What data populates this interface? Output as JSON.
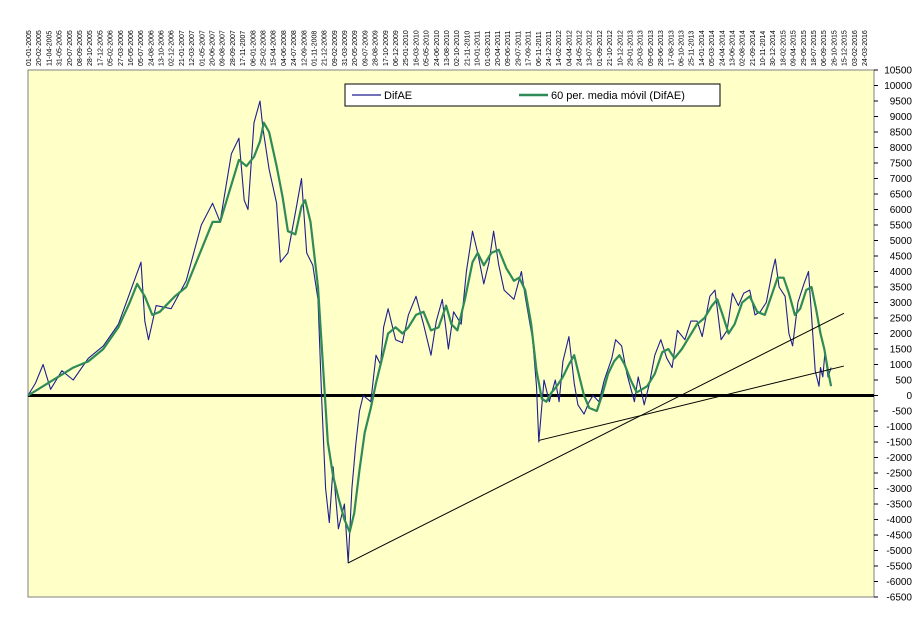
{
  "chart_data": {
    "type": "line",
    "title": "",
    "xlabel": "",
    "ylabel": "",
    "ylim": [
      -6500,
      10500
    ],
    "y_tick_step": 500,
    "grid": false,
    "legend_position": "top-center",
    "colors": {
      "plot_background": "#FFFFC8",
      "difae": "#1F1F8F",
      "moving_average": "#2E8B57",
      "zero_line": "#000000",
      "trendlines": "#000000"
    },
    "x_tick_labels": [
      "01-01-2005",
      "20-02-2005",
      "11-04-2005",
      "31-05-2005",
      "20-07-2005",
      "08-09-2005",
      "28-10-2005",
      "17-12-2005",
      "05-02-2006",
      "27-03-2006",
      "16-05-2006",
      "05-07-2006",
      "24-08-2006",
      "13-10-2006",
      "02-12-2006",
      "21-01-2007",
      "12-03-2007",
      "01-05-2007",
      "20-06-2007",
      "09-08-2007",
      "28-09-2007",
      "17-11-2007",
      "06-01-2008",
      "25-02-2008",
      "15-04-2008",
      "04-06-2008",
      "24-07-2008",
      "12-09-2008",
      "01-11-2008",
      "21-12-2008",
      "09-02-2009",
      "31-03-2009",
      "20-05-2009",
      "09-07-2009",
      "28-08-2009",
      "17-10-2009",
      "06-12-2009",
      "25-01-2010",
      "16-03-2010",
      "05-05-2010",
      "24-06-2010",
      "13-08-2010",
      "02-10-2010",
      "21-11-2010",
      "10-01-2011",
      "01-03-2011",
      "20-04-2011",
      "09-06-2011",
      "29-07-2011",
      "17-09-2011",
      "06-11-2011",
      "24-12-2011",
      "14-02-2012",
      "04-04-2012",
      "24-05-2012",
      "13-07-2012",
      "01-09-2012",
      "21-10-2012",
      "10-12-2012",
      "29-01-2013",
      "20-03-2013",
      "09-05-2013",
      "28-06-2013",
      "17-08-2013",
      "06-10-2013",
      "25-11-2013",
      "14-01-2014",
      "05-03-2014",
      "24-04-2014",
      "13-06-2014",
      "02-08-2014",
      "21-09-2014",
      "10-11-2014",
      "30-12-2014",
      "18-02-2015",
      "09-04-2015",
      "29-05-2015",
      "18-07-2015",
      "06-09-2015",
      "26-10-2015",
      "15-12-2015",
      "03-02-2016",
      "24-03-2016"
    ],
    "series": [
      {
        "name": "DifAE",
        "points": [
          [
            2005.0,
            0
          ],
          [
            2005.1,
            400
          ],
          [
            2005.2,
            1000
          ],
          [
            2005.3,
            200
          ],
          [
            2005.45,
            800
          ],
          [
            2005.6,
            500
          ],
          [
            2005.8,
            1200
          ],
          [
            2006.0,
            1600
          ],
          [
            2006.2,
            2300
          ],
          [
            2006.35,
            3300
          ],
          [
            2006.5,
            4300
          ],
          [
            2006.55,
            2400
          ],
          [
            2006.6,
            1800
          ],
          [
            2006.7,
            2900
          ],
          [
            2006.9,
            2800
          ],
          [
            2007.1,
            3700
          ],
          [
            2007.3,
            5500
          ],
          [
            2007.45,
            6200
          ],
          [
            2007.55,
            5600
          ],
          [
            2007.7,
            7800
          ],
          [
            2007.8,
            8300
          ],
          [
            2007.87,
            6300
          ],
          [
            2007.92,
            6000
          ],
          [
            2008.0,
            8800
          ],
          [
            2008.08,
            9500
          ],
          [
            2008.12,
            8600
          ],
          [
            2008.2,
            7300
          ],
          [
            2008.3,
            6200
          ],
          [
            2008.35,
            4300
          ],
          [
            2008.45,
            4600
          ],
          [
            2008.55,
            5900
          ],
          [
            2008.63,
            7000
          ],
          [
            2008.7,
            4600
          ],
          [
            2008.78,
            4200
          ],
          [
            2008.85,
            3100
          ],
          [
            2008.9,
            -200
          ],
          [
            2008.95,
            -3000
          ],
          [
            2009.0,
            -4100
          ],
          [
            2009.05,
            -2300
          ],
          [
            2009.12,
            -4300
          ],
          [
            2009.2,
            -3500
          ],
          [
            2009.25,
            -5400
          ],
          [
            2009.3,
            -3000
          ],
          [
            2009.35,
            -1600
          ],
          [
            2009.4,
            -500
          ],
          [
            2009.45,
            0
          ],
          [
            2009.55,
            -200
          ],
          [
            2009.62,
            1300
          ],
          [
            2009.68,
            1000
          ],
          [
            2009.72,
            2200
          ],
          [
            2009.78,
            2800
          ],
          [
            2009.88,
            1800
          ],
          [
            2009.97,
            1700
          ],
          [
            2010.05,
            2600
          ],
          [
            2010.15,
            3200
          ],
          [
            2010.25,
            2300
          ],
          [
            2010.35,
            1300
          ],
          [
            2010.42,
            2400
          ],
          [
            2010.5,
            3100
          ],
          [
            2010.58,
            1500
          ],
          [
            2010.65,
            2700
          ],
          [
            2010.75,
            2300
          ],
          [
            2010.82,
            4000
          ],
          [
            2010.9,
            5300
          ],
          [
            2010.97,
            4600
          ],
          [
            2011.05,
            3600
          ],
          [
            2011.12,
            4300
          ],
          [
            2011.18,
            5300
          ],
          [
            2011.25,
            4200
          ],
          [
            2011.32,
            3400
          ],
          [
            2011.45,
            3100
          ],
          [
            2011.55,
            4000
          ],
          [
            2011.6,
            3200
          ],
          [
            2011.7,
            1800
          ],
          [
            2011.75,
            300
          ],
          [
            2011.78,
            -1500
          ],
          [
            2011.85,
            500
          ],
          [
            2011.92,
            -200
          ],
          [
            2012.0,
            500
          ],
          [
            2012.05,
            -200
          ],
          [
            2012.1,
            1100
          ],
          [
            2012.18,
            1900
          ],
          [
            2012.25,
            400
          ],
          [
            2012.3,
            -300
          ],
          [
            2012.38,
            -600
          ],
          [
            2012.45,
            -200
          ],
          [
            2012.5,
            0
          ],
          [
            2012.58,
            -200
          ],
          [
            2012.65,
            500
          ],
          [
            2012.75,
            1200
          ],
          [
            2012.8,
            1800
          ],
          [
            2012.88,
            1600
          ],
          [
            2012.95,
            700
          ],
          [
            2013.05,
            -200
          ],
          [
            2013.1,
            600
          ],
          [
            2013.18,
            -300
          ],
          [
            2013.25,
            400
          ],
          [
            2013.32,
            1300
          ],
          [
            2013.4,
            1800
          ],
          [
            2013.48,
            1200
          ],
          [
            2013.55,
            900
          ],
          [
            2013.62,
            2100
          ],
          [
            2013.72,
            1800
          ],
          [
            2013.8,
            2400
          ],
          [
            2013.88,
            2400
          ],
          [
            2013.95,
            1900
          ],
          [
            2014.05,
            3200
          ],
          [
            2014.12,
            3400
          ],
          [
            2014.15,
            2800
          ],
          [
            2014.2,
            1800
          ],
          [
            2014.28,
            2100
          ],
          [
            2014.35,
            3300
          ],
          [
            2014.43,
            2900
          ],
          [
            2014.5,
            3300
          ],
          [
            2014.58,
            3400
          ],
          [
            2014.65,
            2600
          ],
          [
            2014.72,
            2700
          ],
          [
            2014.8,
            3000
          ],
          [
            2014.88,
            4000
          ],
          [
            2014.92,
            4400
          ],
          [
            2014.97,
            3500
          ],
          [
            2015.05,
            3200
          ],
          [
            2015.1,
            2000
          ],
          [
            2015.15,
            1600
          ],
          [
            2015.22,
            3000
          ],
          [
            2015.3,
            3600
          ],
          [
            2015.36,
            4000
          ],
          [
            2015.4,
            2600
          ],
          [
            2015.45,
            800
          ],
          [
            2015.5,
            300
          ],
          [
            2015.52,
            900
          ],
          [
            2015.55,
            600
          ],
          [
            2015.58,
            1400
          ],
          [
            2015.62,
            600
          ],
          [
            2015.66,
            900
          ]
        ]
      },
      {
        "name": "60 per. media móvil (DifAE)",
        "points": [
          [
            2005.0,
            0
          ],
          [
            2005.2,
            300
          ],
          [
            2005.4,
            600
          ],
          [
            2005.6,
            900
          ],
          [
            2005.8,
            1100
          ],
          [
            2006.0,
            1500
          ],
          [
            2006.2,
            2200
          ],
          [
            2006.35,
            3000
          ],
          [
            2006.45,
            3600
          ],
          [
            2006.55,
            3200
          ],
          [
            2006.65,
            2600
          ],
          [
            2006.75,
            2700
          ],
          [
            2006.95,
            3200
          ],
          [
            2007.1,
            3500
          ],
          [
            2007.3,
            4700
          ],
          [
            2007.45,
            5600
          ],
          [
            2007.55,
            5600
          ],
          [
            2007.7,
            6800
          ],
          [
            2007.8,
            7600
          ],
          [
            2007.9,
            7400
          ],
          [
            2008.0,
            7700
          ],
          [
            2008.08,
            8200
          ],
          [
            2008.13,
            8800
          ],
          [
            2008.2,
            8500
          ],
          [
            2008.3,
            7400
          ],
          [
            2008.38,
            6400
          ],
          [
            2008.45,
            5300
          ],
          [
            2008.55,
            5200
          ],
          [
            2008.63,
            6100
          ],
          [
            2008.68,
            6300
          ],
          [
            2008.75,
            5600
          ],
          [
            2008.85,
            3500
          ],
          [
            2008.92,
            800
          ],
          [
            2008.98,
            -1500
          ],
          [
            2009.05,
            -2600
          ],
          [
            2009.12,
            -3300
          ],
          [
            2009.2,
            -4000
          ],
          [
            2009.27,
            -4400
          ],
          [
            2009.33,
            -3800
          ],
          [
            2009.4,
            -2400
          ],
          [
            2009.47,
            -1200
          ],
          [
            2009.55,
            -400
          ],
          [
            2009.62,
            400
          ],
          [
            2009.7,
            1200
          ],
          [
            2009.78,
            2000
          ],
          [
            2009.88,
            2200
          ],
          [
            2009.97,
            2000
          ],
          [
            2010.05,
            2200
          ],
          [
            2010.15,
            2600
          ],
          [
            2010.25,
            2700
          ],
          [
            2010.35,
            2100
          ],
          [
            2010.45,
            2200
          ],
          [
            2010.55,
            2900
          ],
          [
            2010.62,
            2300
          ],
          [
            2010.7,
            2100
          ],
          [
            2010.8,
            3100
          ],
          [
            2010.9,
            4300
          ],
          [
            2010.97,
            4600
          ],
          [
            2011.05,
            4200
          ],
          [
            2011.15,
            4600
          ],
          [
            2011.25,
            4700
          ],
          [
            2011.35,
            4100
          ],
          [
            2011.45,
            3700
          ],
          [
            2011.52,
            3800
          ],
          [
            2011.6,
            3400
          ],
          [
            2011.68,
            2300
          ],
          [
            2011.75,
            800
          ],
          [
            2011.82,
            -100
          ],
          [
            2011.88,
            -200
          ],
          [
            2011.95,
            100
          ],
          [
            2012.02,
            300
          ],
          [
            2012.1,
            600
          ],
          [
            2012.18,
            1000
          ],
          [
            2012.25,
            1300
          ],
          [
            2012.3,
            800
          ],
          [
            2012.38,
            0
          ],
          [
            2012.45,
            -400
          ],
          [
            2012.55,
            -500
          ],
          [
            2012.62,
            0
          ],
          [
            2012.7,
            700
          ],
          [
            2012.78,
            1100
          ],
          [
            2012.85,
            1300
          ],
          [
            2012.92,
            1000
          ],
          [
            2013.0,
            500
          ],
          [
            2013.08,
            100
          ],
          [
            2013.15,
            200
          ],
          [
            2013.22,
            300
          ],
          [
            2013.32,
            700
          ],
          [
            2013.42,
            1400
          ],
          [
            2013.5,
            1500
          ],
          [
            2013.58,
            1200
          ],
          [
            2013.68,
            1500
          ],
          [
            2013.78,
            1900
          ],
          [
            2013.88,
            2300
          ],
          [
            2013.98,
            2500
          ],
          [
            2014.08,
            2900
          ],
          [
            2014.15,
            3100
          ],
          [
            2014.22,
            2600
          ],
          [
            2014.3,
            2000
          ],
          [
            2014.38,
            2300
          ],
          [
            2014.48,
            3000
          ],
          [
            2014.58,
            3200
          ],
          [
            2014.68,
            2700
          ],
          [
            2014.78,
            2600
          ],
          [
            2014.88,
            3300
          ],
          [
            2014.95,
            3800
          ],
          [
            2015.03,
            3800
          ],
          [
            2015.1,
            3300
          ],
          [
            2015.18,
            2600
          ],
          [
            2015.25,
            2800
          ],
          [
            2015.33,
            3400
          ],
          [
            2015.4,
            3500
          ],
          [
            2015.46,
            2800
          ],
          [
            2015.52,
            2000
          ],
          [
            2015.57,
            1500
          ],
          [
            2015.62,
            800
          ],
          [
            2015.66,
            300
          ]
        ]
      }
    ],
    "trendlines": [
      [
        [
          2009.25,
          -5400
        ],
        [
          2015.83,
          2650
        ]
      ],
      [
        [
          2011.78,
          -1450
        ],
        [
          2015.83,
          950
        ]
      ]
    ]
  }
}
